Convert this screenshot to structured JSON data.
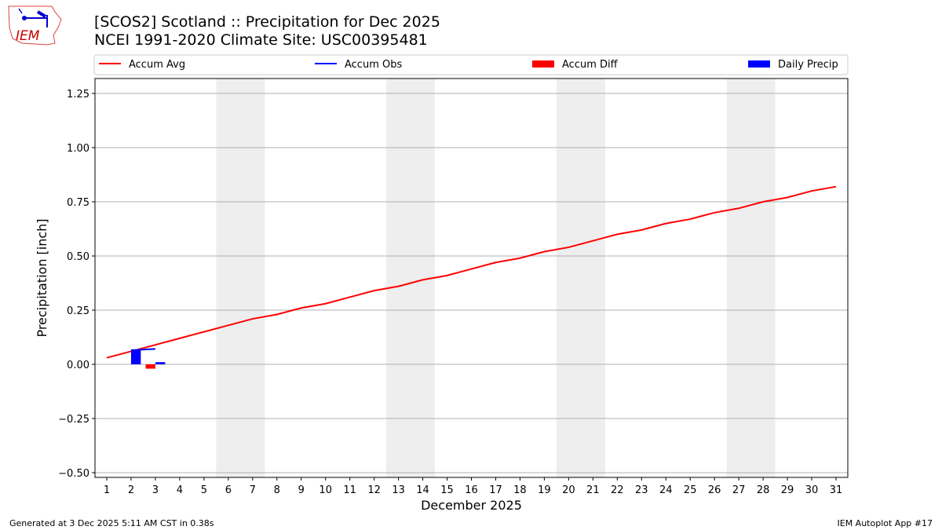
{
  "header": {
    "title_line1": "[SCOS2] Scotland :: Precipitation for Dec 2025",
    "title_line2": "NCEI 1991-2020 Climate Site: USC00395481",
    "logo_text": "IEM"
  },
  "footer": {
    "left": "Generated at 3 Dec 2025 5:11 AM CST in 0.38s",
    "right": "IEM Autoplot App #17"
  },
  "chart_data": {
    "type": "bar+line",
    "xlabel": "December 2025",
    "ylabel": "Precipitation [inch]",
    "ylim": [
      -0.52,
      1.32
    ],
    "yticks": [
      -0.5,
      -0.25,
      0.0,
      0.25,
      0.5,
      0.75,
      1.0,
      1.25
    ],
    "ytick_labels": [
      "−0.50",
      "−0.25",
      "0.00",
      "0.25",
      "0.50",
      "0.75",
      "1.00",
      "1.25"
    ],
    "x": [
      1,
      2,
      3,
      4,
      5,
      6,
      7,
      8,
      9,
      10,
      11,
      12,
      13,
      14,
      15,
      16,
      17,
      18,
      19,
      20,
      21,
      22,
      23,
      24,
      25,
      26,
      27,
      28,
      29,
      30,
      31
    ],
    "grid": "horizontal",
    "legend_placement": "top",
    "weekend_shading": [
      [
        6,
        7
      ],
      [
        13,
        14
      ],
      [
        20,
        21
      ],
      [
        27,
        28
      ]
    ],
    "series": [
      {
        "name": "Accum Avg",
        "kind": "line",
        "color": "#ff0000",
        "x": [
          1,
          2,
          3,
          4,
          5,
          6,
          7,
          8,
          9,
          10,
          11,
          12,
          13,
          14,
          15,
          16,
          17,
          18,
          19,
          20,
          21,
          22,
          23,
          24,
          25,
          26,
          27,
          28,
          29,
          30,
          31
        ],
        "values": [
          0.03,
          0.06,
          0.09,
          0.12,
          0.15,
          0.18,
          0.21,
          0.23,
          0.26,
          0.28,
          0.31,
          0.34,
          0.36,
          0.39,
          0.41,
          0.44,
          0.47,
          0.49,
          0.52,
          0.54,
          0.57,
          0.6,
          0.62,
          0.65,
          0.67,
          0.7,
          0.72,
          0.75,
          0.77,
          0.8,
          0.82
        ]
      },
      {
        "name": "Accum Obs",
        "kind": "line",
        "color": "#0000ff",
        "x": [
          2,
          3
        ],
        "values": [
          0.065,
          0.071
        ]
      },
      {
        "name": "Accum Diff",
        "kind": "bar",
        "color": "#ff0000",
        "x": [
          2,
          3
        ],
        "values": [
          0.0,
          -0.02
        ]
      },
      {
        "name": "Daily Precip",
        "kind": "bar",
        "color": "#0000ff",
        "x": [
          2,
          3
        ],
        "values": [
          0.065,
          0.01
        ]
      }
    ]
  }
}
